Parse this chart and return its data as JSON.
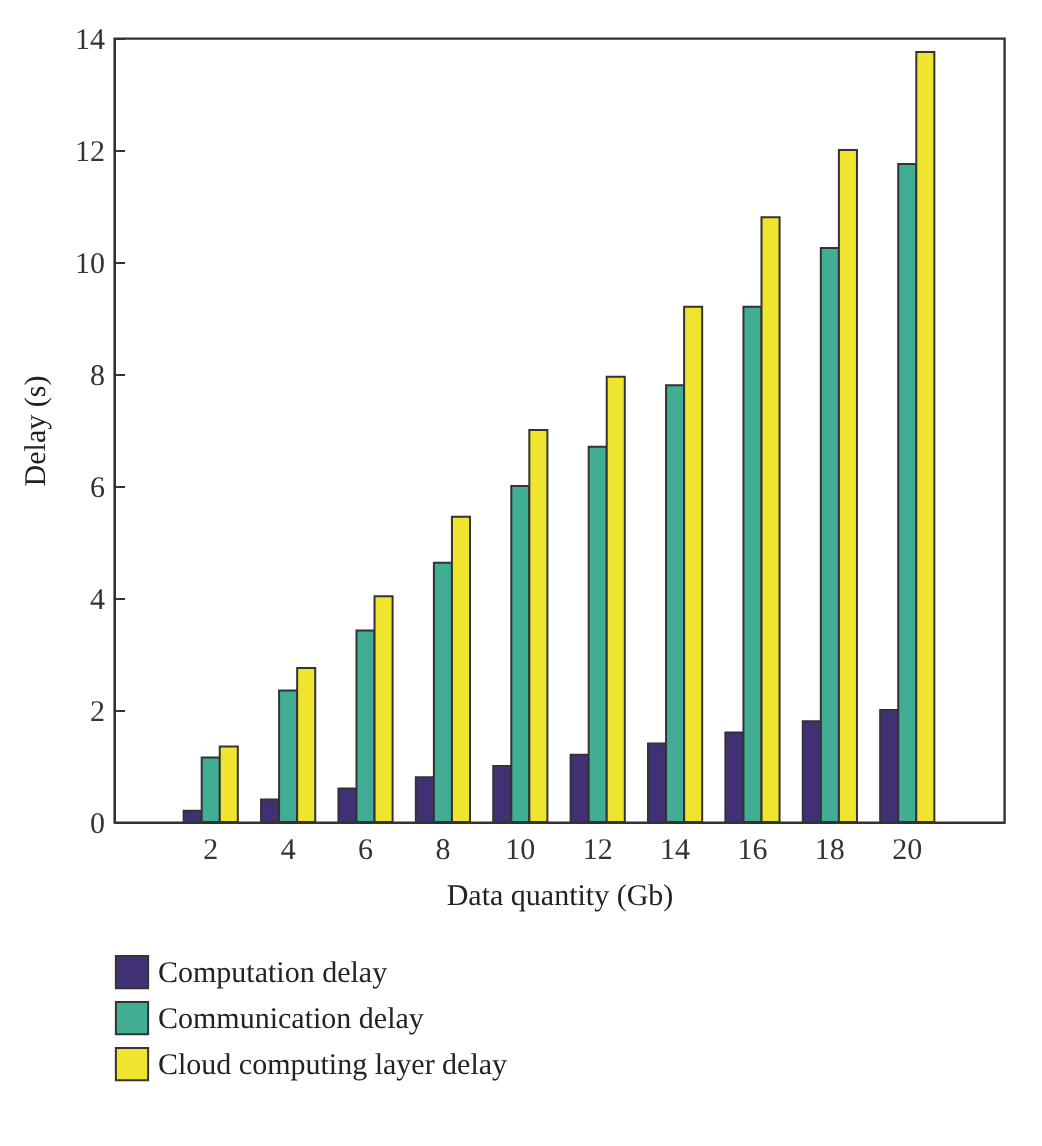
{
  "chart_data": {
    "type": "bar",
    "xlabel": "Data quantity (Gb)",
    "ylabel": "Delay (s)",
    "categories": [
      "2",
      "4",
      "6",
      "8",
      "10",
      "12",
      "14",
      "16",
      "18",
      "20"
    ],
    "series": [
      {
        "name": "Computation delay",
        "color": "#413174",
        "values": [
          0.2,
          0.4,
          0.6,
          0.8,
          1.0,
          1.2,
          1.4,
          1.6,
          1.8,
          2.0
        ]
      },
      {
        "name": "Communication delay",
        "color": "#41ad94",
        "values": [
          1.15,
          2.35,
          3.42,
          4.63,
          6.0,
          6.7,
          7.8,
          9.2,
          10.25,
          11.75
        ]
      },
      {
        "name": "Cloud computing layer delay",
        "color": "#efe52e",
        "values": [
          1.35,
          2.75,
          4.03,
          5.45,
          7.0,
          7.95,
          9.2,
          10.8,
          12.0,
          13.75
        ]
      }
    ],
    "ylim": [
      0,
      14
    ],
    "yticks": [
      0,
      2,
      4,
      6,
      8,
      10,
      12,
      14
    ],
    "grid": false,
    "legend": "bottom"
  }
}
